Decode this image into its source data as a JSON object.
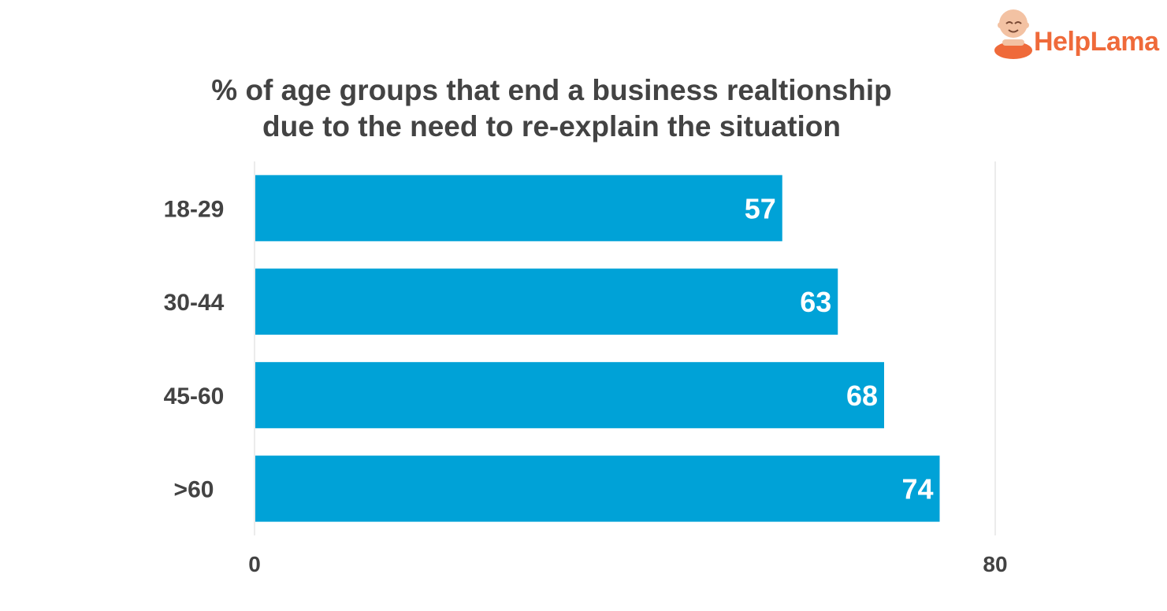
{
  "brand": {
    "logo_text": "HelpLama",
    "logo_color": "#ef6a3a"
  },
  "chart_data": {
    "type": "bar",
    "orientation": "horizontal",
    "title_lines": [
      "% of age groups that end a business realtionship",
      "due to the need to re-explain the situation"
    ],
    "categories": [
      "18-29",
      "30-44",
      "45-60",
      ">60"
    ],
    "values": [
      57,
      63,
      68,
      74
    ],
    "xlim": [
      0,
      80
    ],
    "xticks": [
      "0",
      "80"
    ],
    "bar_color": "#00a2d7",
    "data_labels": true
  }
}
